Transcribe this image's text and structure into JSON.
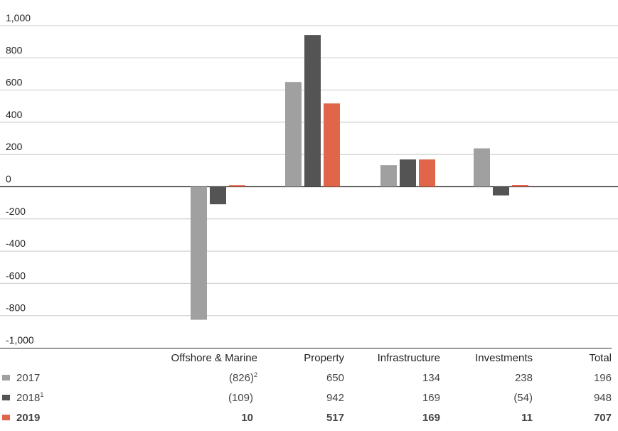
{
  "chart_data": {
    "type": "bar",
    "categories": [
      "Offshore & Marine",
      "Property",
      "Infrastructure",
      "Investments"
    ],
    "series": [
      {
        "name": "2017",
        "values": [
          -826,
          650,
          134,
          238
        ],
        "color": "#a0a0a0"
      },
      {
        "name": "2018",
        "values": [
          -109,
          942,
          169,
          -54
        ],
        "color": "#545454"
      },
      {
        "name": "2019",
        "values": [
          10,
          517,
          169,
          11
        ],
        "color": "#e0654a"
      }
    ],
    "ylim": [
      -1000,
      1000
    ],
    "yticks": [
      "1,000",
      "800",
      "600",
      "400",
      "200",
      "0",
      "-200",
      "-400",
      "-600",
      "-800",
      "-1,000"
    ],
    "grid": true,
    "title": "",
    "xlabel": "",
    "ylabel": ""
  },
  "table": {
    "headers": [
      "Offshore & Marine",
      "Property",
      "Infrastructure",
      "Investments",
      "Total"
    ],
    "rows": [
      {
        "label": "2017",
        "sup": "",
        "bold": false,
        "color": "#a0a0a0",
        "cells": [
          "(826)",
          "650",
          "134",
          "238",
          "196"
        ],
        "cell_sups": [
          "2",
          "",
          "",
          "",
          ""
        ]
      },
      {
        "label": "2018",
        "sup": "1",
        "bold": false,
        "color": "#545454",
        "cells": [
          "(109)",
          "942",
          "169",
          "(54)",
          "948"
        ],
        "cell_sups": [
          "",
          "",
          "",
          "",
          ""
        ]
      },
      {
        "label": "2019",
        "sup": "",
        "bold": true,
        "color": "#e0654a",
        "cells": [
          "10",
          "517",
          "169",
          "11",
          "707"
        ],
        "cell_sups": [
          "",
          "",
          "",
          "",
          ""
        ]
      }
    ]
  }
}
